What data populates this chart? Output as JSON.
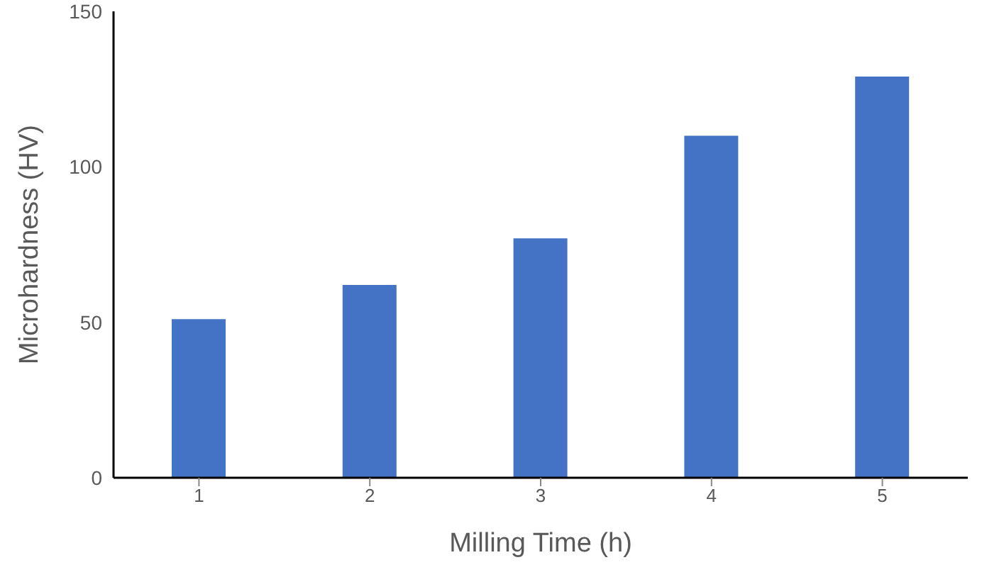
{
  "chart_data": {
    "type": "bar",
    "xlabel": "Milling Time (h)",
    "ylabel": "Microhardness (HV)",
    "categories": [
      "1",
      "2",
      "3",
      "4",
      "5"
    ],
    "values": [
      51,
      62,
      77,
      110,
      129
    ],
    "color": "#4472c4",
    "ylim": [
      0,
      150
    ],
    "yticks": [
      0,
      50,
      100,
      150
    ],
    "grid": false,
    "legend": false
  }
}
